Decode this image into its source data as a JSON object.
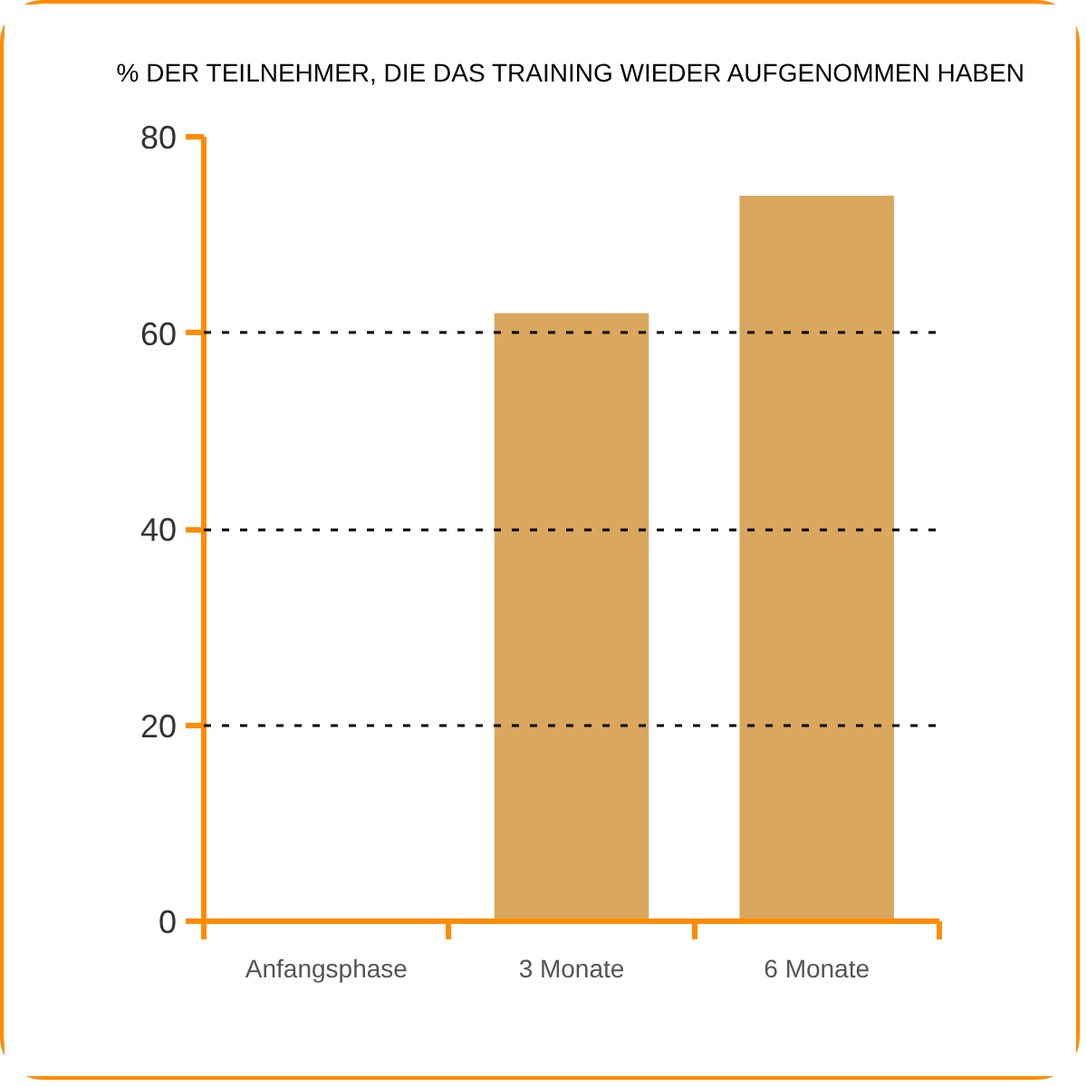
{
  "chart_data": {
    "type": "bar",
    "title": "% DER TEILNEHMER, DIE DAS TRAINING WIEDER AUFGENOMMEN HABEN",
    "categories": [
      "Anfangsphase",
      "3 Monate",
      "6 Monate"
    ],
    "values": [
      0,
      62,
      74
    ],
    "color": "#d9a75e",
    "ylim": [
      0,
      80
    ],
    "yticks": [
      0,
      20,
      40,
      60,
      80
    ],
    "grid": "y"
  }
}
